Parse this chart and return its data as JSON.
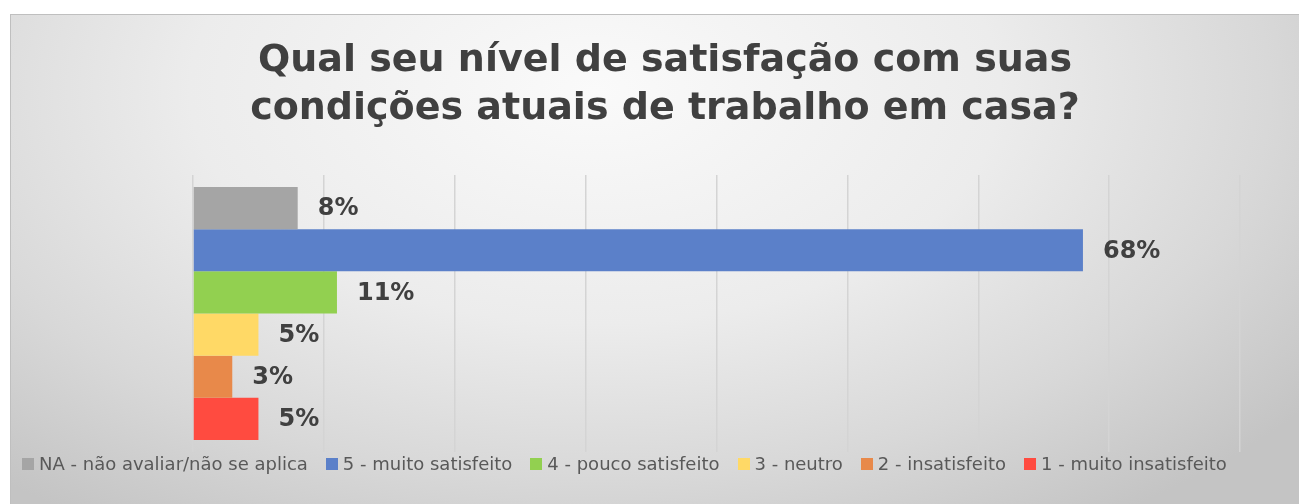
{
  "chart_data": {
    "type": "bar",
    "orientation": "horizontal",
    "title": "Qual seu nível de satisfação com suas condições atuais de trabalho em casa?",
    "categories": [
      null
    ],
    "series": [
      {
        "name": "NA - não avaliar/não se aplica",
        "color": "#a5a5a5",
        "values": [
          8
        ],
        "value_labels": [
          "8%"
        ]
      },
      {
        "name": "5 - muito satisfeito",
        "color": "#5b80c9",
        "values": [
          68
        ],
        "value_labels": [
          "68%"
        ]
      },
      {
        "name": "4 - pouco satisfeito",
        "color": "#92d050",
        "values": [
          11
        ],
        "value_labels": [
          "11%"
        ]
      },
      {
        "name": "3 - neutro",
        "color": "#ffd966",
        "values": [
          5
        ],
        "value_labels": [
          "5%"
        ]
      },
      {
        "name": "2 - insatisfeito",
        "color": "#e8894a",
        "values": [
          3
        ],
        "value_labels": [
          "3%"
        ]
      },
      {
        "name": "1 - muito insatisfeito",
        "color": "#ff4b40",
        "values": [
          5
        ],
        "value_labels": [
          "5%"
        ]
      }
    ],
    "grid": "x",
    "legend": "bottom",
    "tick_labels": false
  }
}
